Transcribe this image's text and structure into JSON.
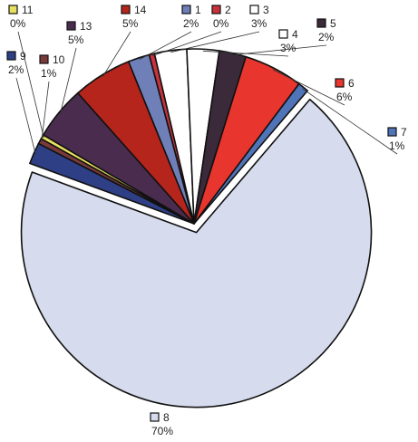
{
  "chart_data": {
    "type": "pie",
    "title": "",
    "legend_placement": "labels next to slices",
    "slices": [
      {
        "label": "1",
        "pct_text": "2%",
        "value": 2,
        "color": "#6f7fb8"
      },
      {
        "label": "2",
        "pct_text": "0%",
        "value": 0.5,
        "color": "#c8323c"
      },
      {
        "label": "3",
        "pct_text": "3%",
        "value": 3,
        "color": "#ffffff"
      },
      {
        "label": "4",
        "pct_text": "3%",
        "value": 3,
        "color": "#ffffff"
      },
      {
        "label": "5",
        "pct_text": "2%",
        "value": 2.5,
        "color": "#3a2a3a"
      },
      {
        "label": "6",
        "pct_text": "6%",
        "value": 5.5,
        "color": "#e8352e"
      },
      {
        "label": "7",
        "pct_text": "1%",
        "value": 1,
        "color": "#4f74b8"
      },
      {
        "label": "8",
        "pct_text": "70%",
        "value": 70,
        "color": "#d6dcee"
      },
      {
        "label": "9",
        "pct_text": "2%",
        "value": 2,
        "color": "#2e3f85"
      },
      {
        "label": "10",
        "pct_text": "1%",
        "value": 0.5,
        "color": "#7a3a3a"
      },
      {
        "label": "11",
        "pct_text": "0%",
        "value": 0.4,
        "color": "#e8e060"
      },
      {
        "label": "13",
        "pct_text": "5%",
        "value": 5,
        "color": "#4a2d4e"
      },
      {
        "label": "14",
        "pct_text": "5%",
        "value": 5.5,
        "color": "#b5251c"
      }
    ]
  }
}
